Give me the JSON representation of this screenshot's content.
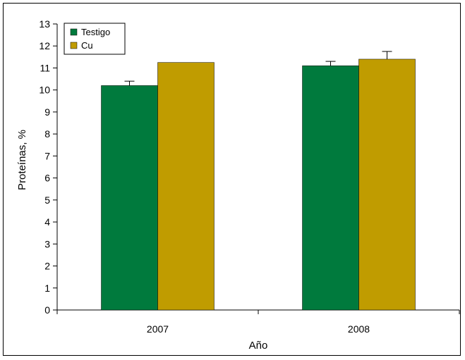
{
  "chart_data": {
    "type": "bar",
    "categories": [
      "2007",
      "2008"
    ],
    "series": [
      {
        "name": "Testigo",
        "color": "#007a3d",
        "values": [
          10.2,
          11.1
        ],
        "errors": [
          0.2,
          0.2
        ]
      },
      {
        "name": "Cu",
        "color": "#c09c00",
        "values": [
          11.25,
          11.4
        ],
        "errors": [
          0,
          0.35
        ]
      }
    ],
    "title": "",
    "xlabel": "Año",
    "ylabel": "Proteínas, %",
    "ylim": [
      0,
      13
    ],
    "yticks": [
      "0",
      "1",
      "2",
      "3",
      "4",
      "5",
      "6",
      "7",
      "8",
      "9",
      "10",
      "11",
      "12",
      "13"
    ],
    "grid": false,
    "legend_position": "top-left"
  }
}
